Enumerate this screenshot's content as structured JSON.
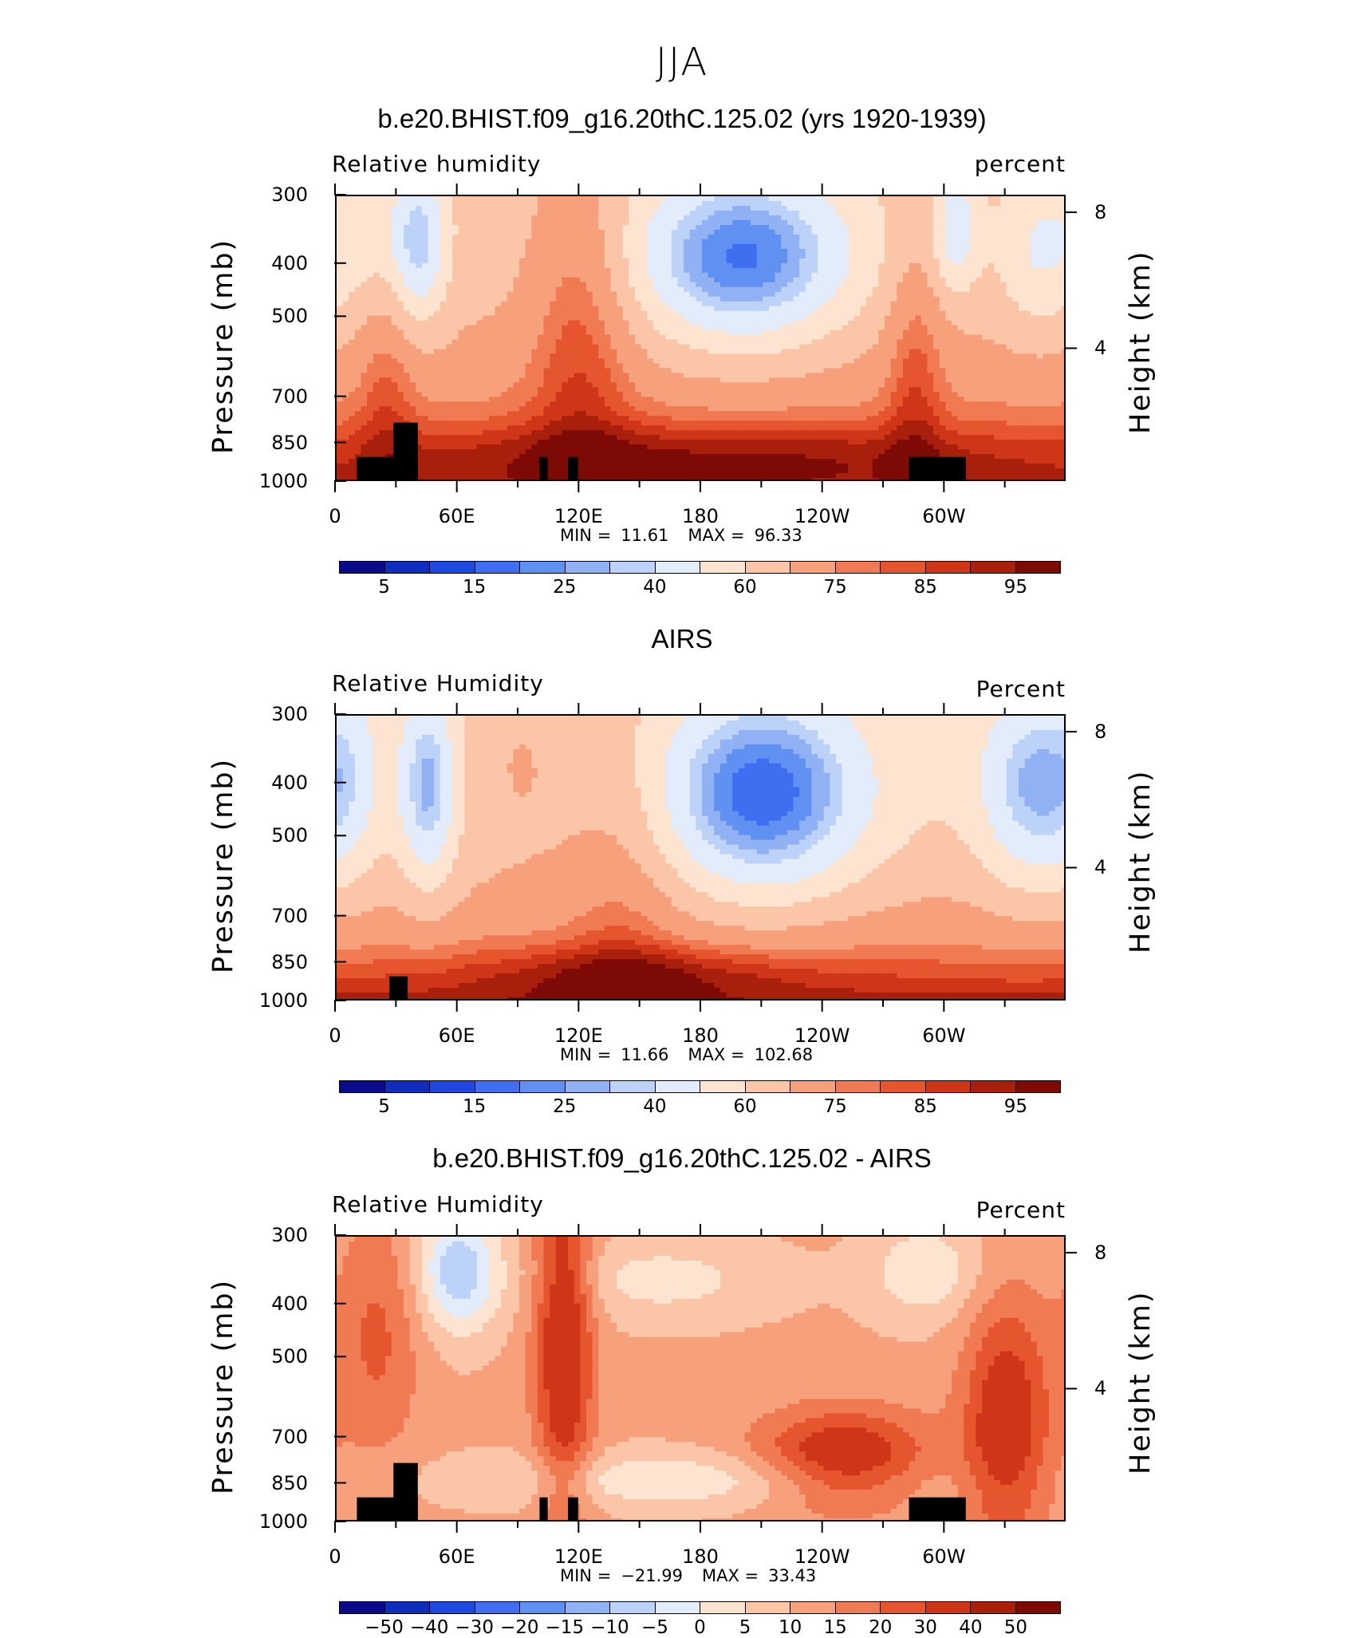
{
  "figure": {
    "title": "JJA"
  },
  "panels": [
    {
      "id": "model",
      "title": "b.e20.BHIST.f09_g16.20thC.125.02 (yrs 1920-1939)",
      "left_string": "Relative humidity",
      "right_string": "percent",
      "min_label": "MIN =",
      "min_value": "11.61",
      "max_label": "MAX =",
      "max_value": "96.33",
      "cbar_labels": [
        "5",
        "15",
        "25",
        "40",
        "60",
        "75",
        "85",
        "95"
      ]
    },
    {
      "id": "obs",
      "title": "AIRS",
      "left_string": "Relative Humidity",
      "right_string": "Percent",
      "min_label": "MIN =",
      "min_value": "11.66",
      "max_label": "MAX =",
      "max_value": "102.68",
      "cbar_labels": [
        "5",
        "15",
        "25",
        "40",
        "60",
        "75",
        "85",
        "95"
      ]
    },
    {
      "id": "diff",
      "title": "b.e20.BHIST.f09_g16.20thC.125.02 - AIRS",
      "left_string": "Relative Humidity",
      "right_string": "Percent",
      "min_label": "MIN =",
      "min_value": "−21.99",
      "max_label": "MAX =",
      "max_value": "33.43",
      "cbar_labels": [
        "−50",
        "−40",
        "−30",
        "−20",
        "−15",
        "−10",
        "−5",
        "0",
        "5",
        "10",
        "15",
        "20",
        "30",
        "40",
        "50"
      ]
    }
  ],
  "axes": {
    "ylabel_left": "Pressure (mb)",
    "ylabel_right": "Height (km)",
    "pressure_ticks": [
      "300",
      "400",
      "500",
      "700",
      "850",
      "1000"
    ],
    "height_ticks": [
      "8",
      "4"
    ],
    "lon_ticks": [
      "0",
      "60E",
      "120E",
      "180",
      "120W",
      "60W"
    ]
  },
  "colors": {
    "blues": [
      "#0a0a8a",
      "#0f2cba",
      "#1f48e0",
      "#3f6ff0",
      "#6090f2",
      "#90b2f5",
      "#bcd2f8",
      "#e2ecfb"
    ],
    "reds": [
      "#fde4d0",
      "#fbc5a8",
      "#f7a07c",
      "#f07a52",
      "#e5552e",
      "#cf3618",
      "#a8200c",
      "#7e0a06"
    ],
    "terrain": "#000000"
  },
  "chart_data": [
    {
      "type": "heatmap",
      "title": "b.e20.BHIST.f09_g16.20thC.125.02 (yrs 1920-1939)",
      "variable": "Relative humidity",
      "units": "percent",
      "x_axis": "longitude",
      "y_axis": "pressure (mb)",
      "x_ticks": [
        "0",
        "60E",
        "120E",
        "180",
        "120W",
        "60W"
      ],
      "y_ticks": [
        300,
        400,
        500,
        700,
        850,
        1000
      ],
      "contour_levels": [
        5,
        10,
        15,
        20,
        25,
        30,
        40,
        50,
        60,
        70,
        75,
        80,
        85,
        90,
        95
      ],
      "min": 11.61,
      "max": 96.33,
      "features": [
        {
          "lon": 195,
          "p": 430,
          "value": 12
        },
        {
          "lon": 40,
          "p": 420,
          "value": 20
        },
        {
          "lon": 305,
          "p": 410,
          "value": 30
        },
        {
          "lon": 180,
          "p": 920,
          "value": 90
        },
        {
          "lon": 120,
          "p": 620,
          "value": 75
        }
      ]
    },
    {
      "type": "heatmap",
      "title": "AIRS",
      "variable": "Relative Humidity",
      "units": "Percent",
      "x_axis": "longitude",
      "y_axis": "pressure (mb)",
      "x_ticks": [
        "0",
        "60E",
        "120E",
        "180",
        "120W",
        "60W"
      ],
      "y_ticks": [
        300,
        400,
        500,
        700,
        850,
        1000
      ],
      "contour_levels": [
        5,
        10,
        15,
        20,
        25,
        30,
        40,
        50,
        60,
        70,
        75,
        80,
        85,
        90,
        95
      ],
      "min": 11.66,
      "max": 102.68,
      "features": [
        {
          "lon": 210,
          "p": 470,
          "value": 12
        },
        {
          "lon": 45,
          "p": 450,
          "value": 20
        },
        {
          "lon": 345,
          "p": 470,
          "value": 20
        },
        {
          "lon": 150,
          "p": 920,
          "value": 95
        }
      ]
    },
    {
      "type": "heatmap",
      "title": "b.e20.BHIST.f09_g16.20thC.125.02 - AIRS",
      "variable": "Relative Humidity",
      "units": "Percent",
      "x_axis": "longitude",
      "y_axis": "pressure (mb)",
      "x_ticks": [
        "0",
        "60E",
        "120E",
        "180",
        "120W",
        "60W"
      ],
      "y_ticks": [
        300,
        400,
        500,
        700,
        850,
        1000
      ],
      "contour_levels": [
        -50,
        -40,
        -30,
        -20,
        -15,
        -10,
        -5,
        0,
        5,
        10,
        15,
        20,
        30,
        40,
        50
      ],
      "min": -21.99,
      "max": 33.43,
      "features": [
        {
          "lon": 60,
          "p": 400,
          "value": -20
        },
        {
          "lon": 112,
          "p": 450,
          "value": 30
        },
        {
          "lon": 250,
          "p": 850,
          "value": 25
        },
        {
          "lon": 330,
          "p": 780,
          "value": 25
        },
        {
          "lon": 280,
          "p": 400,
          "value": -10
        }
      ]
    }
  ]
}
